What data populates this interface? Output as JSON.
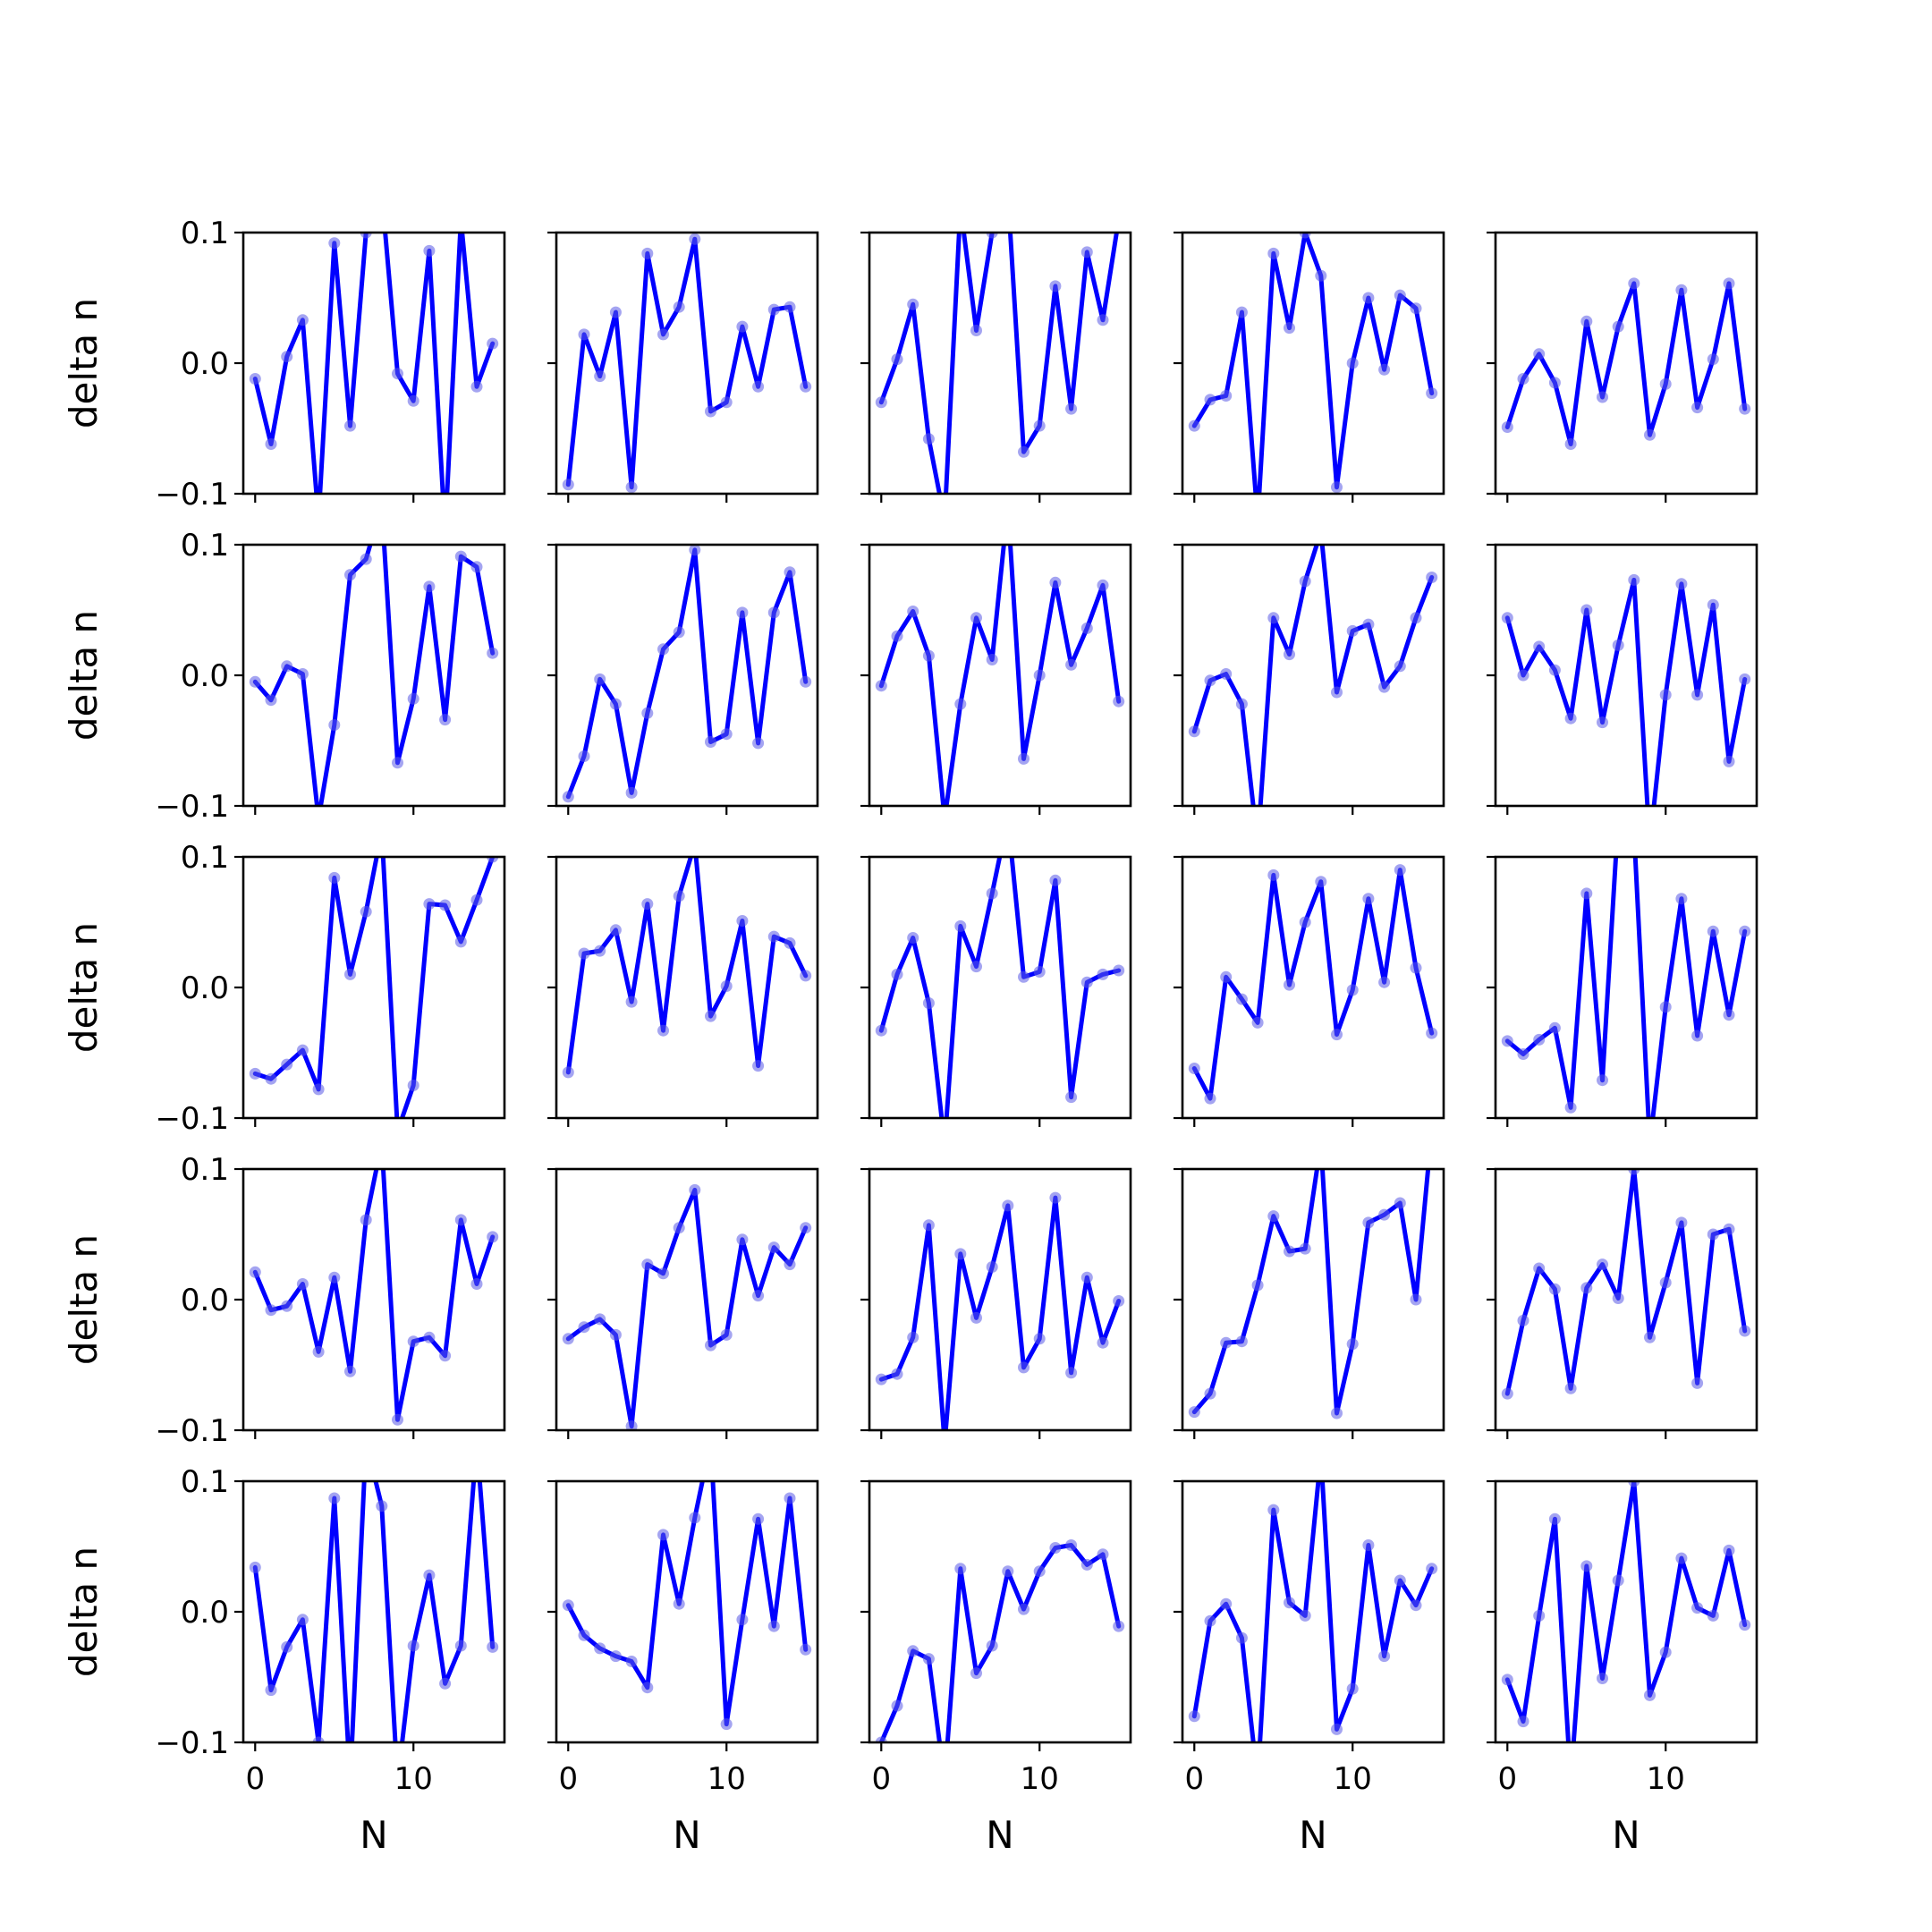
{
  "figure": {
    "line_color": "#0000ff",
    "marker_color": "#5a5ae6"
  },
  "chart_data": {
    "type": "line",
    "layout": "grid 5x5, shared axes",
    "xlabel": "N",
    "ylabel": "delta n",
    "xlim": [
      -0.75,
      15.75
    ],
    "ylim": [
      -0.1,
      0.1
    ],
    "xticks": [
      0,
      10
    ],
    "xtick_labels": [
      "0",
      "10"
    ],
    "yticks": [
      0.1,
      0.0,
      -0.1
    ],
    "ytick_labels": [
      "0.1",
      "0.0",
      "−0.1"
    ],
    "x": [
      0,
      1,
      2,
      3,
      4,
      5,
      6,
      7,
      8,
      9,
      10,
      11,
      12,
      13,
      14,
      15
    ],
    "grid": false,
    "legend": "none",
    "panels": [
      [
        -0.012,
        -0.062,
        0.005,
        0.033,
        -0.12,
        0.092,
        -0.048,
        0.1,
        0.13,
        -0.008,
        -0.029,
        0.086,
        -0.13,
        0.11,
        -0.018,
        0.015
      ],
      [
        -0.093,
        0.022,
        -0.01,
        0.039,
        -0.095,
        0.084,
        0.022,
        0.043,
        0.095,
        -0.037,
        -0.03,
        0.028,
        -0.018,
        0.041,
        0.043,
        -0.018
      ],
      [
        -0.03,
        0.003,
        0.045,
        -0.058,
        -0.12,
        0.12,
        0.025,
        0.1,
        0.13,
        -0.068,
        -0.048,
        0.059,
        -0.035,
        0.085,
        0.033,
        0.11
      ],
      [
        -0.048,
        -0.028,
        -0.025,
        0.039,
        -0.12,
        0.084,
        0.027,
        0.1,
        0.067,
        -0.095,
        0.0,
        0.05,
        -0.005,
        0.052,
        0.042,
        -0.023
      ],
      [
        -0.049,
        -0.012,
        0.007,
        -0.015,
        -0.062,
        0.032,
        -0.026,
        0.028,
        0.061,
        -0.055,
        -0.016,
        0.056,
        -0.034,
        0.003,
        0.061,
        -0.035
      ],
      [
        -0.005,
        -0.019,
        0.007,
        0.001,
        -0.11,
        -0.038,
        0.077,
        0.089,
        0.13,
        -0.067,
        -0.018,
        0.068,
        -0.034,
        0.091,
        0.083,
        0.017
      ],
      [
        -0.093,
        -0.062,
        -0.003,
        -0.022,
        -0.09,
        -0.029,
        0.02,
        0.033,
        0.096,
        -0.051,
        -0.045,
        0.048,
        -0.052,
        0.048,
        0.079,
        -0.005
      ],
      [
        -0.008,
        0.03,
        0.049,
        0.015,
        -0.11,
        -0.022,
        0.044,
        0.012,
        0.13,
        -0.064,
        0.0,
        0.071,
        0.008,
        0.036,
        0.069,
        -0.02
      ],
      [
        -0.043,
        -0.004,
        0.001,
        -0.022,
        -0.13,
        0.044,
        0.016,
        0.072,
        0.11,
        -0.013,
        0.034,
        0.039,
        -0.009,
        0.007,
        0.044,
        0.075
      ],
      [
        0.044,
        0.0,
        0.022,
        0.004,
        -0.033,
        0.05,
        -0.036,
        0.023,
        0.073,
        -0.13,
        -0.015,
        0.07,
        -0.015,
        0.054,
        -0.066,
        -0.003
      ],
      [
        -0.066,
        -0.07,
        -0.059,
        -0.048,
        -0.078,
        0.084,
        0.01,
        0.058,
        0.12,
        -0.11,
        -0.075,
        0.064,
        0.063,
        0.035,
        0.067,
        0.1
      ],
      [
        -0.065,
        0.026,
        0.028,
        0.044,
        -0.011,
        0.064,
        -0.033,
        0.07,
        0.11,
        -0.022,
        0.001,
        0.051,
        -0.06,
        0.039,
        0.034,
        0.009
      ],
      [
        -0.033,
        0.01,
        0.038,
        -0.012,
        -0.12,
        0.047,
        0.016,
        0.072,
        0.13,
        0.008,
        0.012,
        0.082,
        -0.084,
        0.004,
        0.01,
        0.013
      ],
      [
        -0.062,
        -0.085,
        0.008,
        -0.009,
        -0.027,
        0.086,
        0.002,
        0.05,
        0.081,
        -0.036,
        -0.002,
        0.068,
        0.004,
        0.09,
        0.015,
        -0.035
      ],
      [
        -0.041,
        -0.051,
        -0.04,
        -0.031,
        -0.092,
        0.072,
        -0.071,
        0.13,
        0.12,
        -0.12,
        -0.015,
        0.068,
        -0.037,
        0.043,
        -0.021,
        0.043
      ],
      [
        0.021,
        -0.008,
        -0.005,
        0.012,
        -0.04,
        0.017,
        -0.055,
        0.061,
        0.12,
        -0.092,
        -0.032,
        -0.029,
        -0.043,
        0.061,
        0.012,
        0.048
      ],
      [
        -0.03,
        -0.021,
        -0.015,
        -0.027,
        -0.097,
        0.027,
        0.02,
        0.055,
        0.084,
        -0.035,
        -0.027,
        0.046,
        0.003,
        0.04,
        0.027,
        0.055
      ],
      [
        -0.061,
        -0.057,
        -0.029,
        0.057,
        -0.11,
        0.035,
        -0.014,
        0.025,
        0.072,
        -0.052,
        -0.03,
        0.078,
        -0.056,
        0.017,
        -0.033,
        -0.001
      ],
      [
        -0.086,
        -0.072,
        -0.033,
        -0.032,
        0.011,
        0.064,
        0.037,
        0.039,
        0.12,
        -0.087,
        -0.034,
        0.059,
        0.065,
        0.074,
        0.0,
        0.13
      ],
      [
        -0.072,
        -0.016,
        0.024,
        0.008,
        -0.068,
        0.009,
        0.027,
        0.001,
        0.1,
        -0.029,
        0.013,
        0.059,
        -0.064,
        0.05,
        0.054,
        -0.024
      ],
      [
        0.034,
        -0.06,
        -0.027,
        -0.006,
        -0.1,
        0.087,
        -0.13,
        0.13,
        0.081,
        -0.13,
        -0.026,
        0.028,
        -0.055,
        -0.026,
        0.13,
        -0.027
      ],
      [
        0.005,
        -0.018,
        -0.028,
        -0.034,
        -0.038,
        -0.058,
        0.059,
        0.006,
        0.072,
        0.13,
        -0.086,
        -0.006,
        0.071,
        -0.011,
        0.087,
        -0.029
      ],
      [
        -0.1,
        -0.072,
        -0.03,
        -0.036,
        -0.13,
        0.033,
        -0.047,
        -0.026,
        0.031,
        0.002,
        0.031,
        0.049,
        0.051,
        0.036,
        0.044,
        -0.011
      ],
      [
        -0.08,
        -0.007,
        0.006,
        -0.02,
        -0.13,
        0.078,
        0.007,
        -0.003,
        0.12,
        -0.09,
        -0.059,
        0.051,
        -0.034,
        0.024,
        0.005,
        0.033
      ],
      [
        -0.052,
        -0.084,
        -0.003,
        0.071,
        -0.13,
        0.035,
        -0.051,
        0.024,
        0.1,
        -0.064,
        -0.031,
        0.041,
        0.003,
        -0.003,
        0.047,
        -0.01
      ]
    ]
  }
}
